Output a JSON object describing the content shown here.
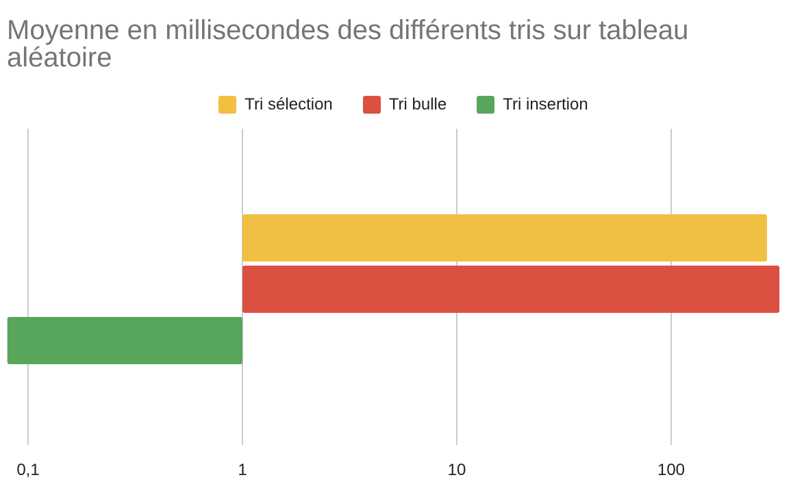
{
  "chart_data": {
    "type": "bar",
    "orientation": "horizontal",
    "title": "Moyenne en millisecondes des différents tris sur tableau aléatoire",
    "xscale": "log",
    "xlim": [
      0.1,
      400
    ],
    "xticks": [
      0.1,
      1,
      10,
      100
    ],
    "xtick_labels": [
      "0,1",
      "1",
      "10",
      "100"
    ],
    "grid": "vertical",
    "legend_position": "top",
    "baseline": 1,
    "categories": [
      ""
    ],
    "series": [
      {
        "name": "Tri sélection",
        "values": [
          280
        ],
        "color": "#f1bf42"
      },
      {
        "name": "Tri bulle",
        "values": [
          320
        ],
        "color": "#db5040"
      },
      {
        "name": "Tri insertion",
        "values": [
          0.08
        ],
        "color": "#57a65b"
      }
    ]
  }
}
